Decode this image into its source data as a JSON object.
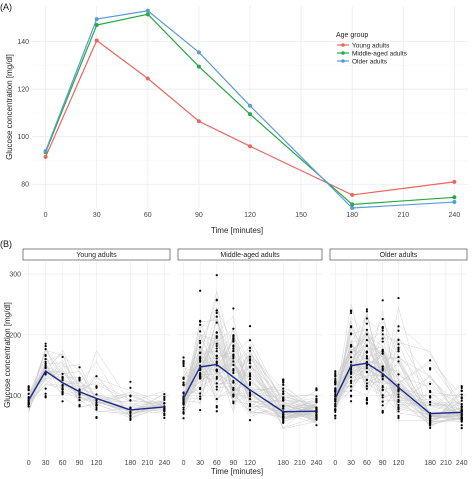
{
  "chart_data": [
    {
      "panel_label": "(A)",
      "type": "line",
      "xlabel": "Time [minutes]",
      "ylabel": "Glucose concentration [mg/dl]",
      "x": [
        0,
        30,
        60,
        90,
        120,
        180,
        240
      ],
      "xticks": [
        0,
        30,
        60,
        90,
        120,
        150,
        180,
        210,
        240
      ],
      "xlim": [
        -8,
        248
      ],
      "yticks": [
        80,
        100,
        120,
        140
      ],
      "ylim": [
        70,
        155
      ],
      "grid": true,
      "legend_title": "Age group",
      "legend_position": "top-right",
      "series": [
        {
          "name": "Young adults",
          "color": "#e8685e",
          "values": [
            91.5,
            140.5,
            124.5,
            106.5,
            96,
            75.5,
            81
          ]
        },
        {
          "name": "Middle-aged adults",
          "color": "#27a844",
          "values": [
            93.5,
            147,
            151.5,
            129.5,
            109.5,
            71.5,
            74.5
          ]
        },
        {
          "name": "Older adults",
          "color": "#5b9bd5",
          "values": [
            94,
            149.5,
            153,
            135.5,
            113,
            70,
            72.5
          ]
        }
      ]
    },
    {
      "panel_label": "(B)",
      "type": "scatter",
      "xlabel": "Time [minutes]",
      "ylabel": "Glucose concentration [mg/dl]",
      "x": [
        0,
        30,
        60,
        90,
        120,
        180,
        240
      ],
      "xticks": [
        0,
        30,
        60,
        90,
        120,
        180,
        210,
        240
      ],
      "xlim": [
        -10,
        250
      ],
      "yticks": [
        100,
        200,
        300
      ],
      "ylim": [
        0,
        320
      ],
      "grid": true,
      "mean_line_color": "#1a2a8c",
      "individual_line_color": "#c8c8c8",
      "point_color": "#000000",
      "facets": [
        {
          "name": "Young adults",
          "mean": [
            92,
            140,
            121,
            106,
            95,
            76,
            81
          ],
          "spread_low": [
            65,
            85,
            80,
            70,
            60,
            55,
            60
          ],
          "spread_high": [
            125,
            200,
            200,
            170,
            200,
            140,
            110
          ]
        },
        {
          "name": "Middle-aged adults",
          "mean": [
            95,
            147,
            151,
            130,
            109,
            73,
            74
          ],
          "spread_low": [
            60,
            70,
            60,
            50,
            45,
            40,
            45
          ],
          "spread_high": [
            175,
            285,
            305,
            265,
            240,
            140,
            115
          ]
        },
        {
          "name": "Older adults",
          "mean": [
            95,
            149,
            153,
            136,
            113,
            70,
            72
          ],
          "spread_low": [
            60,
            75,
            70,
            55,
            45,
            40,
            45
          ],
          "spread_high": [
            150,
            270,
            270,
            265,
            270,
            210,
            140
          ]
        }
      ]
    }
  ]
}
